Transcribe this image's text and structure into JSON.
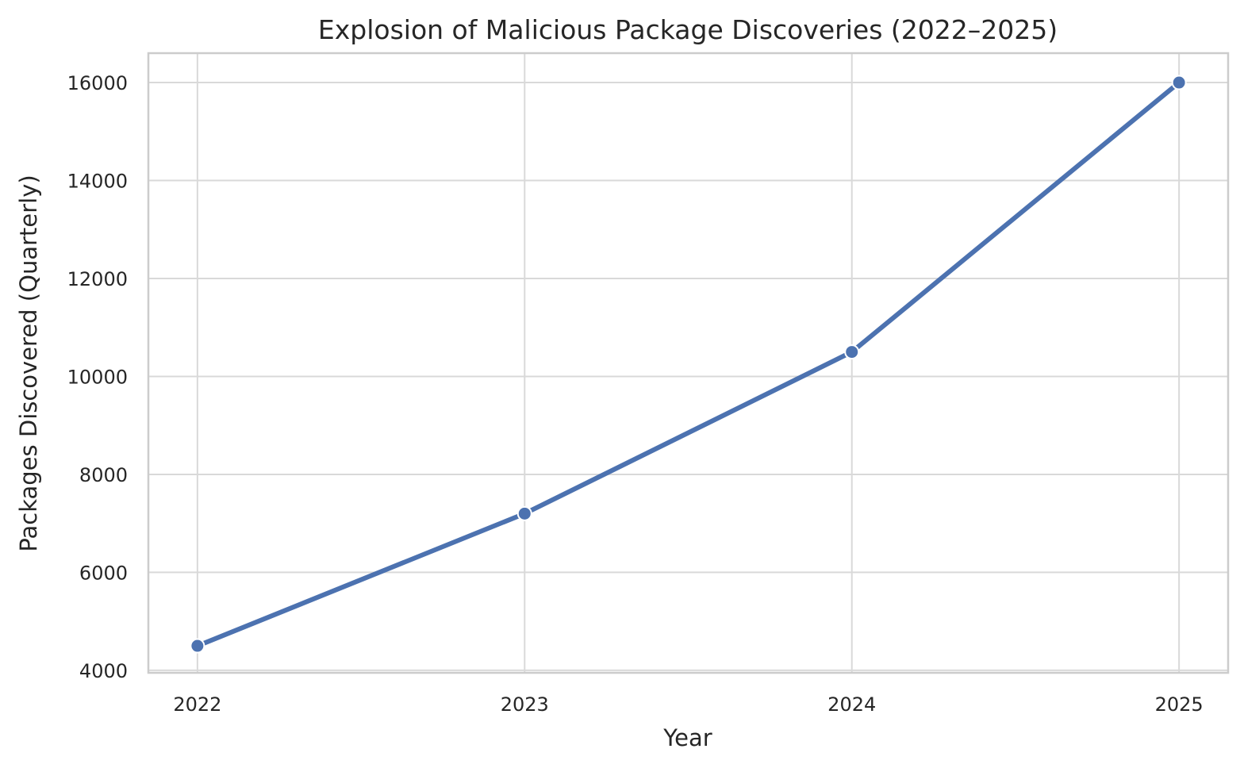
{
  "chart_data": {
    "type": "line",
    "title": "Explosion of Malicious Package Discoveries (2022–2025)",
    "xlabel": "Year",
    "ylabel": "Packages Discovered (Quarterly)",
    "x": [
      2022,
      2023,
      2024,
      2025
    ],
    "x_tick_labels": [
      "2022",
      "2023",
      "2024",
      "2025"
    ],
    "y_ticks": [
      4000,
      6000,
      8000,
      10000,
      12000,
      14000,
      16000
    ],
    "y_tick_labels": [
      "4000",
      "6000",
      "8000",
      "10000",
      "12000",
      "14000",
      "16000"
    ],
    "ylim": [
      3950,
      16600
    ],
    "xlim": [
      2021.85,
      2025.15
    ],
    "grid": true,
    "series": [
      {
        "values": [
          4500,
          7200,
          10500,
          16000
        ],
        "color": "#4c72b0",
        "marker": "circle"
      }
    ]
  }
}
